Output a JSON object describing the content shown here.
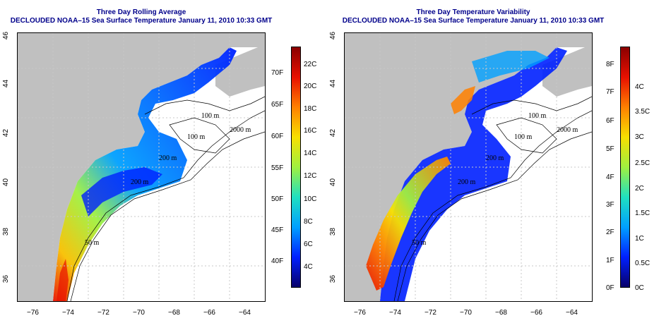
{
  "left_panel": {
    "title": "Three Day Rolling Average",
    "subtitle": "DECLOUDED NOAA–15 Sea Surface Temperature January 11, 2010 10:33 GMT",
    "contour_labels": [
      "100 m",
      "100 m",
      "200 m",
      "2000 m",
      "50 m",
      "200 m"
    ],
    "colorbar_f": [
      "70F",
      "65F",
      "60F",
      "55F",
      "50F",
      "45F",
      "40F"
    ],
    "colorbar_c": [
      "22C",
      "20C",
      "18C",
      "16C",
      "14C",
      "12C",
      "10C",
      "8C",
      "6C",
      "4C"
    ],
    "colors": [
      "#08006a",
      "#0020ff",
      "#00a0ff",
      "#20e0c0",
      "#a0f040",
      "#f8e000",
      "#ff8000",
      "#e81000",
      "#8a0000"
    ]
  },
  "right_panel": {
    "title": "Three Day Temperature Variability",
    "subtitle": "DECLOUDED NOAA–15 Sea Surface Temperature January 11, 2010 10:33 GMT",
    "contour_labels": [
      "100 m",
      "100 m",
      "200 m",
      "2000 m",
      "50 m",
      "200 m"
    ],
    "colorbar_f": [
      "8F",
      "7F",
      "6F",
      "5F",
      "4F",
      "3F",
      "2F",
      "1F",
      "0F"
    ],
    "colorbar_c": [
      "4C",
      "3.5C",
      "3C",
      "2.5C",
      "2C",
      "1.5C",
      "1C",
      "0.5C",
      "0C"
    ],
    "colors": [
      "#08006a",
      "#0020ff",
      "#00a0ff",
      "#20e0c0",
      "#a0f040",
      "#f8e000",
      "#ff8000",
      "#e81000",
      "#8a0000"
    ]
  },
  "axes": {
    "lon_labels": [
      "−76",
      "−74",
      "−72",
      "−70",
      "−68",
      "−66",
      "−64"
    ],
    "lat_labels": [
      "46",
      "44",
      "42",
      "40",
      "38",
      "36"
    ],
    "lon_range": [
      -77,
      -63
    ],
    "lat_range": [
      35,
      46
    ]
  },
  "palette": {
    "land": "#c0c0c0",
    "contour": "#000000",
    "grid": "#c8c8c8",
    "title": "#00008b"
  }
}
